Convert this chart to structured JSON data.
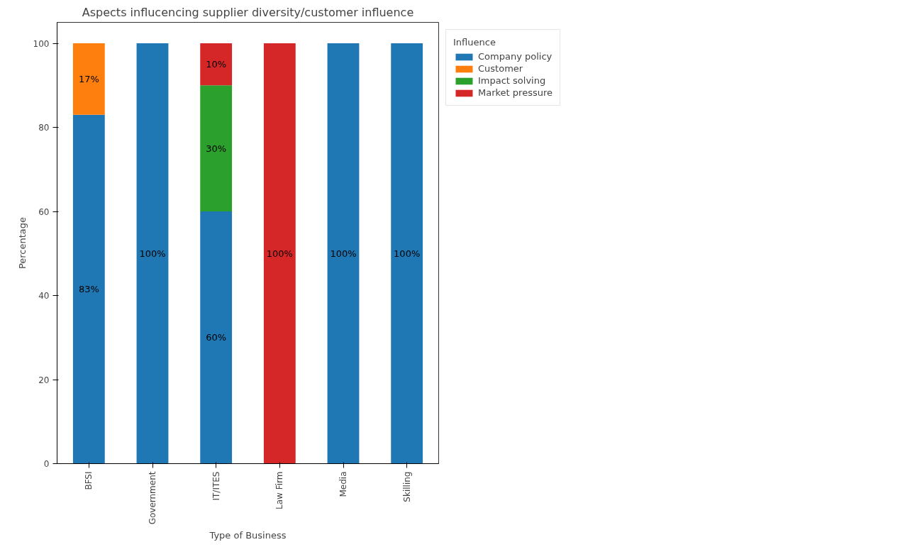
{
  "chart_data": {
    "type": "bar",
    "title": "Aspects influcencing supplier diversity/customer influence",
    "xlabel": "Type of Business",
    "ylabel": "Percentage",
    "legend_title": "Influence",
    "categories": [
      "BFSI",
      "Government",
      "IT/ITES",
      "Law Firm",
      "Media",
      "Skilling"
    ],
    "stacked": true,
    "ylim": [
      0,
      105
    ],
    "yticks": [
      0,
      20,
      40,
      60,
      80,
      100
    ],
    "grid": false,
    "legend": "top right",
    "series": [
      {
        "name": "Company policy",
        "color": "#1f77b4",
        "values": [
          83,
          100,
          60,
          null,
          100,
          100
        ],
        "value_labels": [
          "83%",
          "100%",
          "60%",
          null,
          "100%",
          "100%"
        ]
      },
      {
        "name": "Customer",
        "color": "#ff7f0e",
        "values": [
          17,
          null,
          null,
          null,
          null,
          null
        ],
        "value_labels": [
          "17%",
          null,
          null,
          null,
          null,
          null
        ]
      },
      {
        "name": "Impact solving",
        "color": "#2ca02c",
        "values": [
          null,
          null,
          30,
          null,
          null,
          null
        ],
        "value_labels": [
          null,
          null,
          "30%",
          null,
          null,
          null
        ]
      },
      {
        "name": "Market pressure",
        "color": "#d62728",
        "values": [
          null,
          null,
          10,
          100,
          null,
          null
        ],
        "value_labels": [
          null,
          null,
          "10%",
          "100%",
          null,
          null
        ]
      }
    ]
  }
}
